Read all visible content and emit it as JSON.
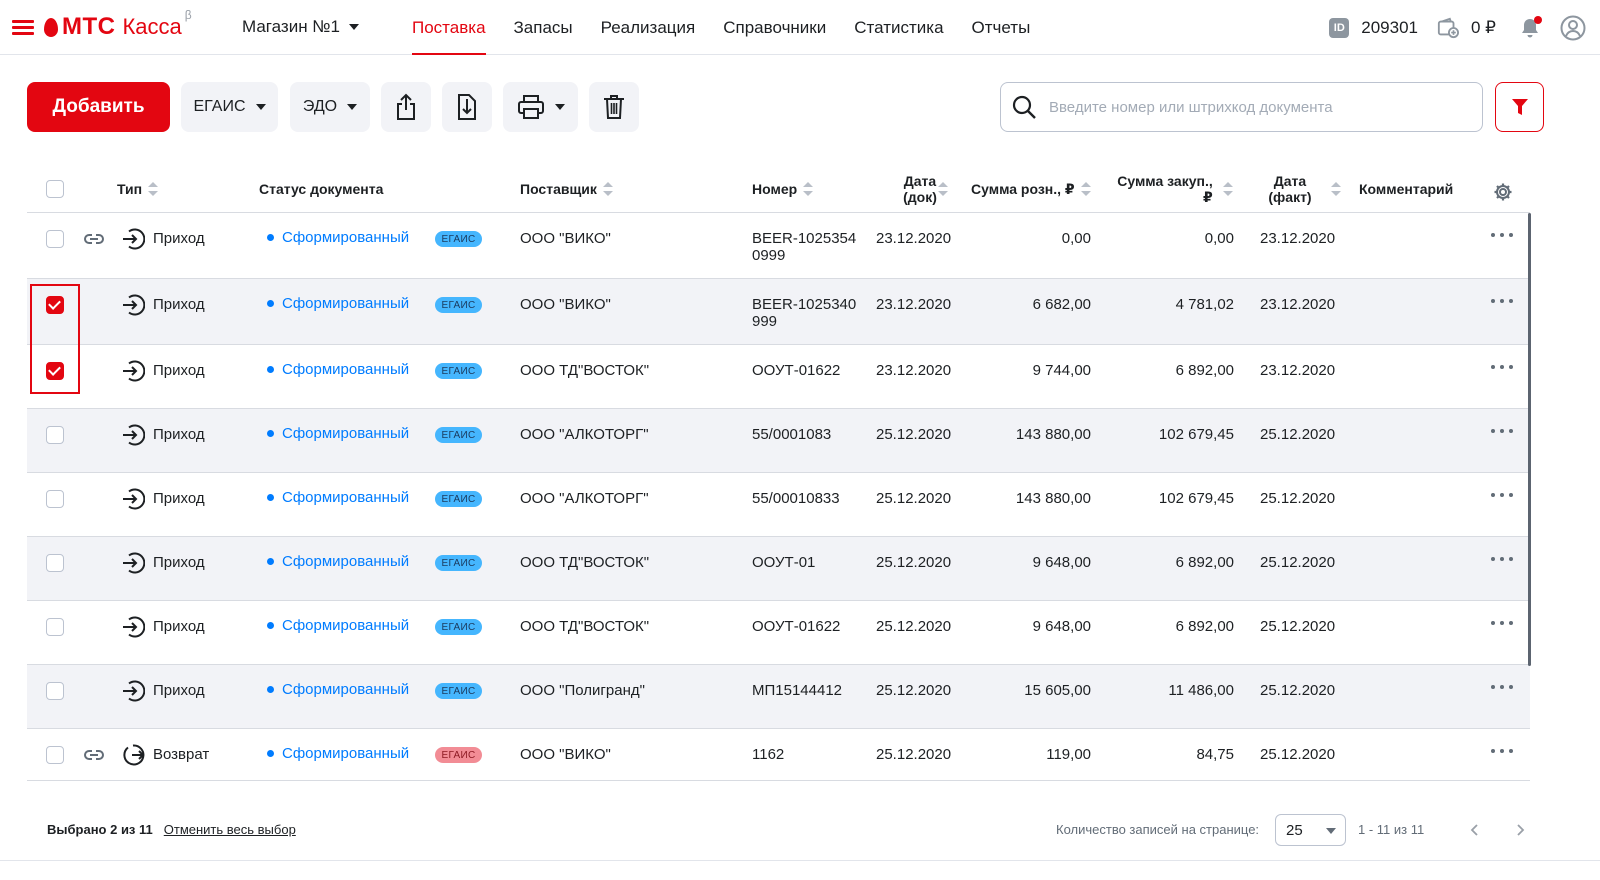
{
  "app": {
    "logo_brand": "МТС",
    "logo_product": "Касса",
    "logo_beta": "β",
    "store": "Магазин №1",
    "accent_color": "#e30611",
    "link_color": "#007cff"
  },
  "nav": {
    "items": [
      {
        "label": "Поставка",
        "active": true
      },
      {
        "label": "Запасы",
        "active": false
      },
      {
        "label": "Реализация",
        "active": false
      },
      {
        "label": "Справочники",
        "active": false
      },
      {
        "label": "Статистика",
        "active": false
      },
      {
        "label": "Отчеты",
        "active": false
      }
    ]
  },
  "header_right": {
    "id_label": "ID",
    "id_value": "209301",
    "balance": "0 ₽",
    "has_notification": true
  },
  "toolbar": {
    "add_label": "Добавить",
    "egais_label": "ЕГАИС",
    "edo_label": "ЭДО",
    "search_placeholder": "Введите номер или штрихкод документа",
    "icons": [
      "upload-icon",
      "download-icon",
      "print-icon",
      "trash-icon",
      "filter-icon"
    ]
  },
  "table": {
    "columns": {
      "type": "Тип",
      "status": "Статус документа",
      "supplier": "Поставщик",
      "number": "Номер",
      "date_doc_1": "Дата",
      "date_doc_2": "(док)",
      "sum_retail": "Сумма розн., ₽",
      "sum_purchase_1": "Сумма закуп.,",
      "sum_purchase_2": "₽",
      "date_fact_1": "Дата",
      "date_fact_2": "(факт)",
      "comment": "Комментарий"
    },
    "rows": [
      {
        "checked": false,
        "linked": true,
        "type": "Приход",
        "status": "Сформированный",
        "tag": "ЕГАИС",
        "tag_color": "blue",
        "supplier": "ООО \"ВИКО\"",
        "number_1": "BEER-1025354",
        "number_2": "0999",
        "date_doc": "23.12.2020",
        "sum_retail": "0,00",
        "sum_purchase": "0,00",
        "date_fact": "23.12.2020",
        "comment": ""
      },
      {
        "checked": true,
        "linked": false,
        "type": "Приход",
        "status": "Сформированный",
        "tag": "ЕГАИС",
        "tag_color": "blue",
        "supplier": "ООО \"ВИКО\"",
        "number_1": "BEER-1025340",
        "number_2": "999",
        "date_doc": "23.12.2020",
        "sum_retail": "6 682,00",
        "sum_purchase": "4 781,02",
        "date_fact": "23.12.2020",
        "comment": ""
      },
      {
        "checked": true,
        "linked": false,
        "type": "Приход",
        "status": "Сформированный",
        "tag": "ЕГАИС",
        "tag_color": "blue",
        "supplier": "ООО ТД\"ВОСТОК\"",
        "number_1": "ООУТ-01622",
        "number_2": "",
        "date_doc": "23.12.2020",
        "sum_retail": "9 744,00",
        "sum_purchase": "6 892,00",
        "date_fact": "23.12.2020",
        "comment": ""
      },
      {
        "checked": false,
        "linked": false,
        "type": "Приход",
        "status": "Сформированный",
        "tag": "ЕГАИС",
        "tag_color": "blue",
        "supplier": "ООО \"АЛКОТОРГ\"",
        "number_1": "55/0001083",
        "number_2": "",
        "date_doc": "25.12.2020",
        "sum_retail": "143 880,00",
        "sum_purchase": "102 679,45",
        "date_fact": "25.12.2020",
        "comment": ""
      },
      {
        "checked": false,
        "linked": false,
        "type": "Приход",
        "status": "Сформированный",
        "tag": "ЕГАИС",
        "tag_color": "blue",
        "supplier": "ООО \"АЛКОТОРГ\"",
        "number_1": "55/00010833",
        "number_2": "",
        "date_doc": "25.12.2020",
        "sum_retail": "143 880,00",
        "sum_purchase": "102 679,45",
        "date_fact": "25.12.2020",
        "comment": ""
      },
      {
        "checked": false,
        "linked": false,
        "type": "Приход",
        "status": "Сформированный",
        "tag": "ЕГАИС",
        "tag_color": "blue",
        "supplier": "ООО ТД\"ВОСТОК\"",
        "number_1": "ООУТ-01",
        "number_2": "",
        "date_doc": "25.12.2020",
        "sum_retail": "9 648,00",
        "sum_purchase": "6 892,00",
        "date_fact": "25.12.2020",
        "comment": ""
      },
      {
        "checked": false,
        "linked": false,
        "type": "Приход",
        "status": "Сформированный",
        "tag": "ЕГАИС",
        "tag_color": "blue",
        "supplier": "ООО ТД\"ВОСТОК\"",
        "number_1": "ООУТ-01622",
        "number_2": "",
        "date_doc": "25.12.2020",
        "sum_retail": "9 648,00",
        "sum_purchase": "6 892,00",
        "date_fact": "25.12.2020",
        "comment": ""
      },
      {
        "checked": false,
        "linked": false,
        "type": "Приход",
        "status": "Сформированный",
        "tag": "ЕГАИС",
        "tag_color": "blue",
        "supplier": "ООО \"Полигранд\"",
        "number_1": "МП15144412",
        "number_2": "",
        "date_doc": "25.12.2020",
        "sum_retail": "15 605,00",
        "sum_purchase": "11 486,00",
        "date_fact": "25.12.2020",
        "comment": ""
      },
      {
        "checked": false,
        "linked": true,
        "type": "Возврат",
        "status": "Сформированный",
        "tag": "ЕГАИС",
        "tag_color": "red",
        "supplier": "ООО \"ВИКО\"",
        "number_1": "1162",
        "number_2": "",
        "date_doc": "25.12.2020",
        "sum_retail": "119,00",
        "sum_purchase": "84,75",
        "date_fact": "25.12.2020",
        "comment": ""
      }
    ]
  },
  "footer": {
    "selected_label": "Выбрано 2 из 11",
    "clear_label": "Отменить весь выбор",
    "per_page_label": "Количество записей на странице:",
    "per_page_value": "25",
    "range": "1 - 11 из 11"
  }
}
